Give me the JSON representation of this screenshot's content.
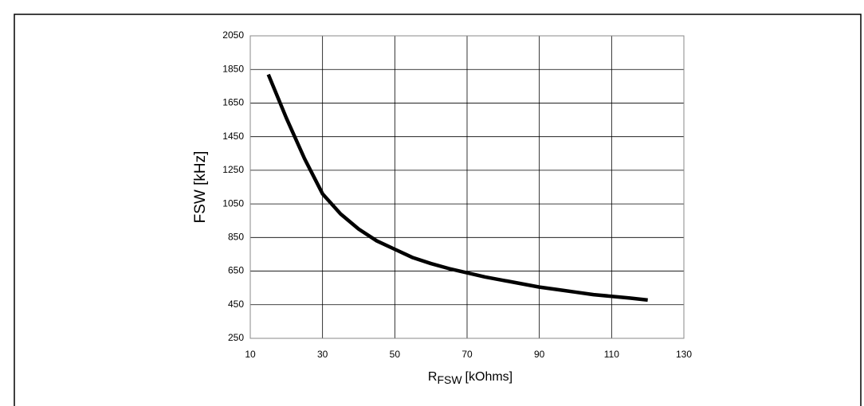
{
  "chart_data": {
    "type": "line",
    "ylabel": "FSW [kHz]",
    "xlabel_parts": [
      "R",
      "FSW",
      "[kOhms]"
    ],
    "x": [
      15,
      20,
      25,
      30,
      35,
      40,
      45,
      50,
      55,
      60,
      65,
      70,
      75,
      80,
      85,
      90,
      95,
      100,
      105,
      110,
      115,
      120
    ],
    "series": [
      {
        "color": "#000000",
        "values": [
          1820,
          1560,
          1320,
          1110,
          990,
          900,
          830,
          780,
          730,
          695,
          665,
          640,
          615,
          595,
          575,
          555,
          540,
          525,
          510,
          500,
          490,
          478
        ]
      }
    ],
    "xlim": [
      10,
      130
    ],
    "xticks": [
      10,
      30,
      50,
      70,
      90,
      110,
      130
    ],
    "ylim": [
      250,
      2050
    ],
    "yticks": [
      250,
      450,
      650,
      850,
      1050,
      1250,
      1450,
      1650,
      1850,
      2050
    ],
    "grid": true
  }
}
